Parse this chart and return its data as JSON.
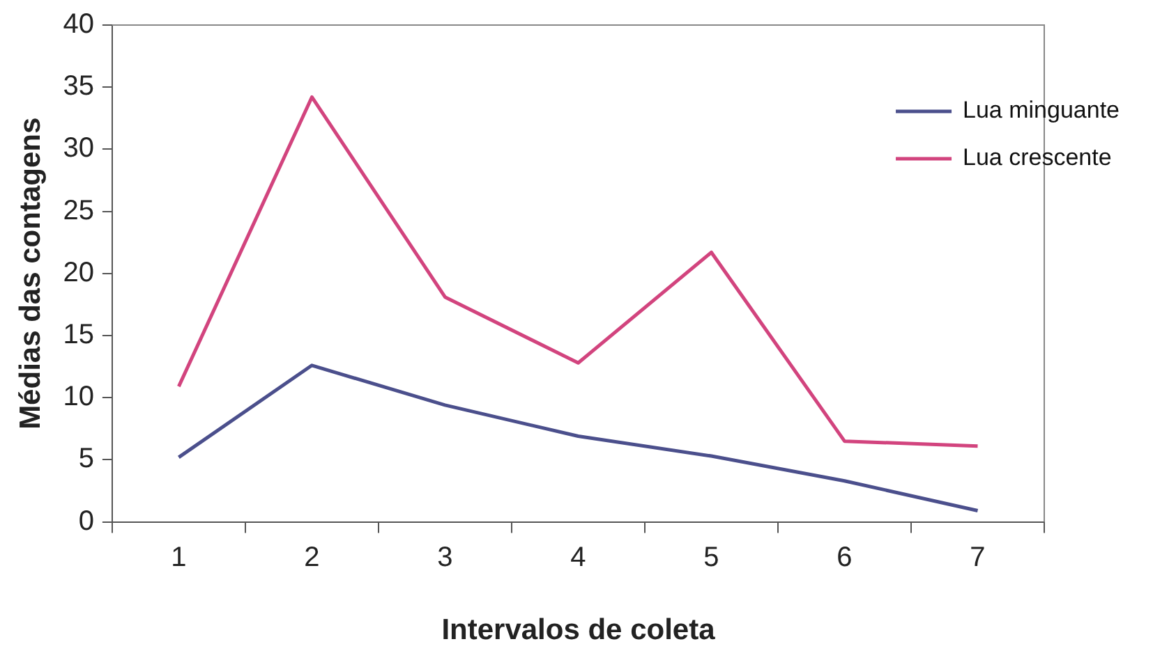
{
  "chart_data": {
    "type": "line",
    "xlabel": "Intervalos de coleta",
    "ylabel": "Médias das contagens",
    "categories": [
      "1",
      "2",
      "3",
      "4",
      "5",
      "6",
      "7"
    ],
    "series": [
      {
        "name": "Lua minguante",
        "color": "#4b4f8c",
        "values": [
          5.2,
          12.6,
          9.4,
          6.9,
          5.3,
          3.3,
          0.9
        ]
      },
      {
        "name": "Lua crescente",
        "color": "#d2447e",
        "values": [
          10.9,
          34.2,
          18.1,
          12.8,
          21.7,
          6.5,
          6.1
        ]
      }
    ],
    "ylim": [
      0,
      40
    ],
    "yticks": [
      0,
      5,
      10,
      15,
      20,
      25,
      30,
      35,
      40
    ],
    "grid": false,
    "legend": "top right",
    "marker": "none",
    "line_style": "solid"
  }
}
